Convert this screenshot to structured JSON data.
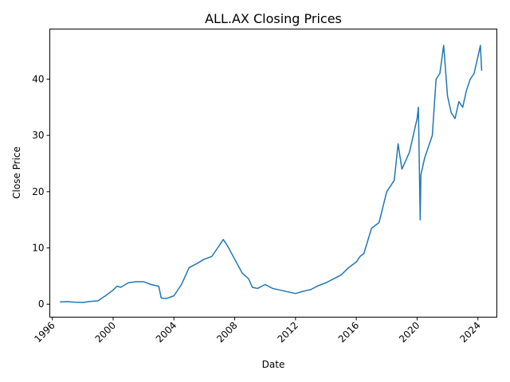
{
  "chart_data": {
    "type": "line",
    "title": "ALL.AX Closing Prices",
    "xlabel": "Date",
    "ylabel": "Close Price",
    "x_ticks": [
      "1996",
      "2000",
      "2004",
      "2008",
      "2012",
      "2016",
      "2020",
      "2024"
    ],
    "y_ticks": [
      "0",
      "10",
      "20",
      "30",
      "40"
    ],
    "xlim": [
      "1995-11-01",
      "2025-04-01"
    ],
    "ylim": [
      -2.3,
      48.9
    ],
    "grid": false,
    "line_color": "#1f77b4",
    "series": [
      {
        "x": [
          "1996-07-01",
          "1997-01-01",
          "1997-07-01",
          "1998-01-01",
          "1998-07-01",
          "1999-01-01",
          "1999-07-01",
          "2000-01-01",
          "2000-04-01",
          "2000-07-01",
          "2001-01-01",
          "2001-07-01",
          "2002-01-01",
          "2002-07-01",
          "2003-01-01",
          "2003-03-01",
          "2003-07-01",
          "2004-01-01",
          "2004-07-01",
          "2005-01-01",
          "2005-07-01",
          "2006-01-01",
          "2006-07-01",
          "2007-01-01",
          "2007-04-01",
          "2007-07-01",
          "2008-01-01",
          "2008-07-01",
          "2008-12-01",
          "2009-03-01",
          "2009-07-01",
          "2010-01-01",
          "2010-07-01",
          "2011-01-01",
          "2011-07-01",
          "2012-01-01",
          "2012-07-01",
          "2013-01-01",
          "2013-07-01",
          "2014-01-01",
          "2014-07-01",
          "2015-01-01",
          "2015-07-01",
          "2016-01-01",
          "2016-04-01",
          "2016-07-01",
          "2017-01-01",
          "2017-04-01",
          "2017-07-01",
          "2018-01-01",
          "2018-07-01",
          "2018-10-01",
          "2019-01-01",
          "2019-07-01",
          "2020-01-01",
          "2020-02-01",
          "2020-03-15",
          "2020-04-01",
          "2020-07-01",
          "2021-01-01",
          "2021-04-01",
          "2021-07-01",
          "2021-10-01",
          "2022-01-01",
          "2022-04-01",
          "2022-07-01",
          "2022-10-01",
          "2023-01-01",
          "2023-04-01",
          "2023-07-01",
          "2023-10-01",
          "2024-01-01",
          "2024-03-01",
          "2024-04-01"
        ],
        "values": [
          0.4,
          0.45,
          0.35,
          0.3,
          0.5,
          0.6,
          1.5,
          2.5,
          3.2,
          3.0,
          3.8,
          4.0,
          4.0,
          3.5,
          3.2,
          1.1,
          1.0,
          1.5,
          3.5,
          6.5,
          7.2,
          8.0,
          8.5,
          10.5,
          11.5,
          10.5,
          8.0,
          5.5,
          4.5,
          3.0,
          2.8,
          3.5,
          2.8,
          2.5,
          2.2,
          1.9,
          2.3,
          2.6,
          3.3,
          3.8,
          4.5,
          5.2,
          6.5,
          7.5,
          8.5,
          9.0,
          13.5,
          14.0,
          14.5,
          20.0,
          22.0,
          28.5,
          24.0,
          27.0,
          33.0,
          35.0,
          15.0,
          23.0,
          26.0,
          30.0,
          40.0,
          41.0,
          46.0,
          37.0,
          34.0,
          33.0,
          36.0,
          35.0,
          38.0,
          40.0,
          41.0,
          44.0,
          46.0,
          41.5
        ]
      }
    ]
  }
}
